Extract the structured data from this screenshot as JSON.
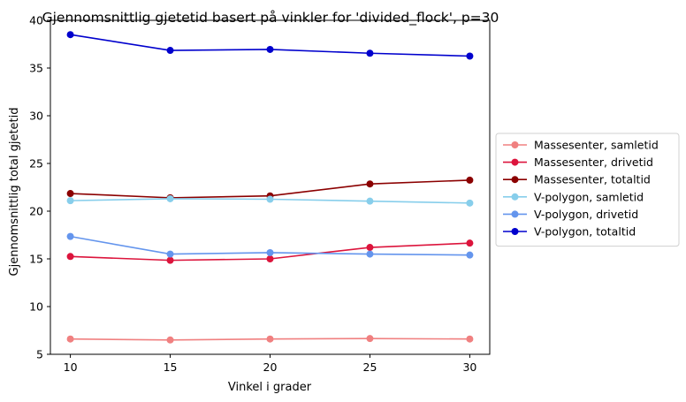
{
  "chart_data": {
    "type": "line",
    "title": "Gjennomsnittlig gjetetid basert på vinkler for 'divided_flock', p=30",
    "xlabel": "Vinkel i grader",
    "ylabel": "Gjennomsnittlig total gjetetid",
    "x": [
      10,
      15,
      20,
      25,
      30
    ],
    "xlim": [
      9,
      31
    ],
    "ylim": [
      5,
      40
    ],
    "xticks": [
      "10",
      "15",
      "20",
      "25",
      "30"
    ],
    "yticks": [
      "5",
      "10",
      "15",
      "20",
      "25",
      "30",
      "35",
      "40"
    ],
    "grid": false,
    "legend_position": "center-right-outside",
    "series": [
      {
        "name": "Massesenter, samletid",
        "color": "#f08080",
        "values": [
          6.6,
          6.5,
          6.6,
          6.65,
          6.6
        ]
      },
      {
        "name": "Massesenter, drivetid",
        "color": "#dc143c",
        "values": [
          15.25,
          14.85,
          15.0,
          16.2,
          16.65
        ]
      },
      {
        "name": "Massesenter, totaltid",
        "color": "#8b0000",
        "values": [
          21.85,
          21.4,
          21.6,
          22.85,
          23.25
        ]
      },
      {
        "name": "V-polygon, samletid",
        "color": "#87ceeb",
        "values": [
          21.1,
          21.3,
          21.25,
          21.05,
          20.85
        ]
      },
      {
        "name": "V-polygon, drivetid",
        "color": "#6495ed",
        "values": [
          17.35,
          15.5,
          15.65,
          15.5,
          15.4
        ]
      },
      {
        "name": "V-polygon, totaltid",
        "color": "#0000cd",
        "values": [
          38.5,
          36.85,
          36.95,
          36.55,
          36.25
        ]
      }
    ]
  }
}
